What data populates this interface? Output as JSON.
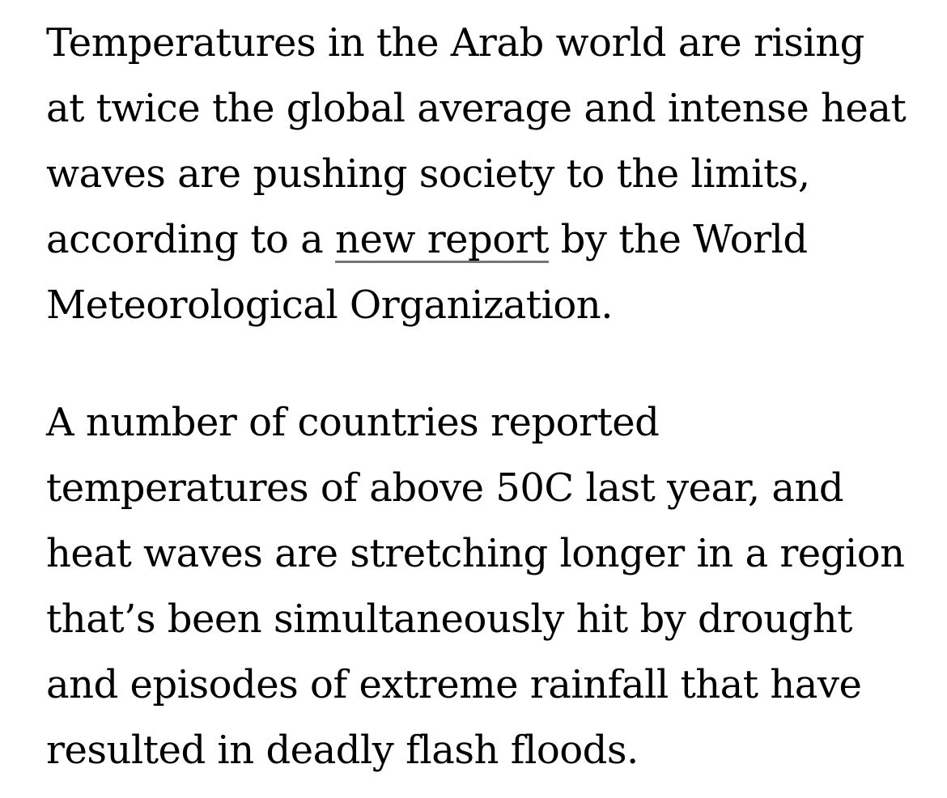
{
  "article": {
    "text_color": "#000000",
    "background_color": "#ffffff",
    "link": {
      "text": "new report",
      "text_color": "#000000",
      "underline_color": "#757575"
    },
    "paragraph1": {
      "line1": "Temperatures in the Arab world are rising",
      "line2": "at twice the global average and intense heat",
      "line3": "waves are pushing society to the limits,",
      "line4_before_link": "according to a ",
      "line4_link": "new report",
      "line4_after_link": " by the World",
      "line5": "Meteorological Organization."
    },
    "paragraph2": {
      "line1": "A number of countries reported",
      "line2": "temperatures of above 50C last year, and",
      "line3": "heat waves are stretching longer in a region",
      "line4": "that’s been simultaneously hit by drought",
      "line5": "and episodes of extreme rainfall that have",
      "line6": "resulted in deadly flash floods."
    }
  }
}
